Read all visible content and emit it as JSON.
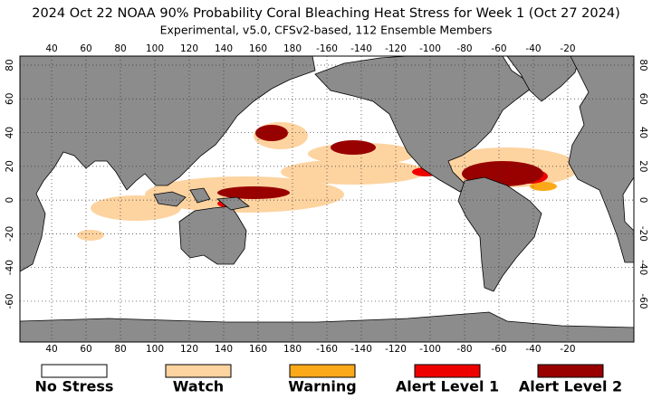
{
  "title": "2024 Oct 22 NOAA 90% Probability Coral Bleaching Heat Stress for Week 1 (Oct 27 2024)",
  "subtitle": "Experimental, v5.0, CFSv2-based, 112 Ensemble Members",
  "map": {
    "lon_ticks": [
      40,
      60,
      80,
      100,
      120,
      140,
      160,
      180,
      -160,
      -140,
      -120,
      -100,
      -80,
      -60,
      -40,
      -20
    ],
    "lat_ticks": [
      80,
      60,
      40,
      20,
      0,
      -20,
      -40,
      -60
    ]
  },
  "legend": [
    {
      "label": "No Stress",
      "color": "#ffffff"
    },
    {
      "label": "Watch",
      "color": "#fdd3a0"
    },
    {
      "label": "Warning",
      "color": "#fba918"
    },
    {
      "label": "Alert Level 1",
      "color": "#ee0000"
    },
    {
      "label": "Alert Level 2",
      "color": "#990000"
    }
  ]
}
